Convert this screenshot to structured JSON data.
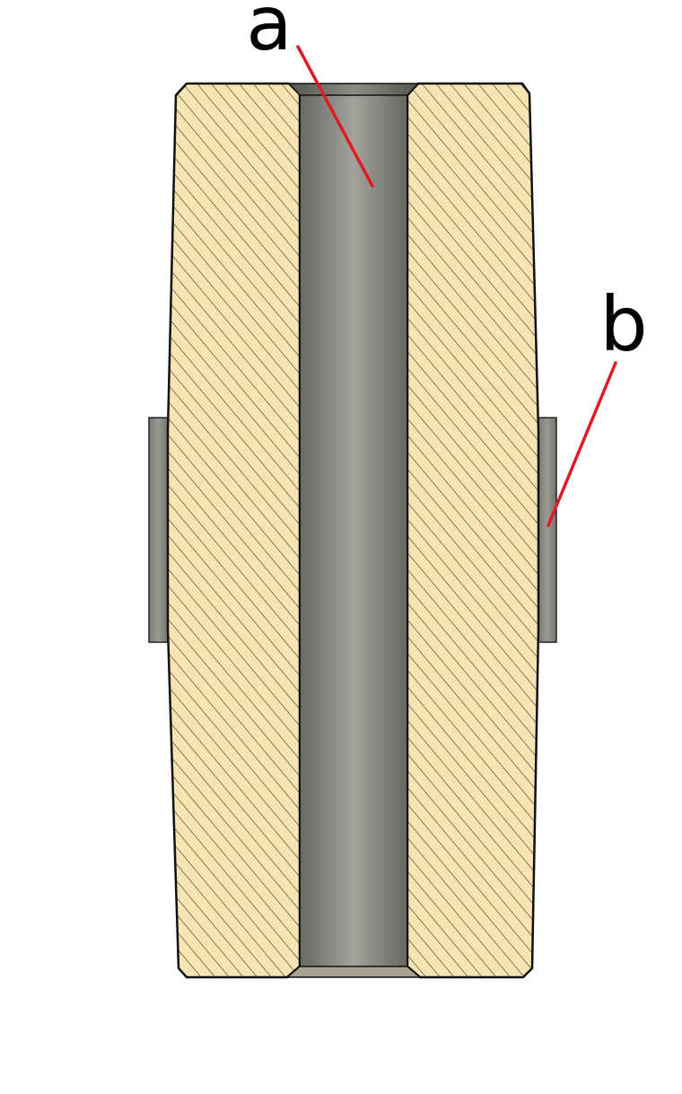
{
  "labels": {
    "a": "a",
    "b": "b"
  },
  "colors": {
    "body_fill": "#f7e4b3",
    "hatch": "#2a2418",
    "outline": "#111111",
    "bore_dark": "#6e6e68",
    "bore_light": "#9a9a93",
    "ring": "#85857e",
    "leader": "#e01b24"
  }
}
